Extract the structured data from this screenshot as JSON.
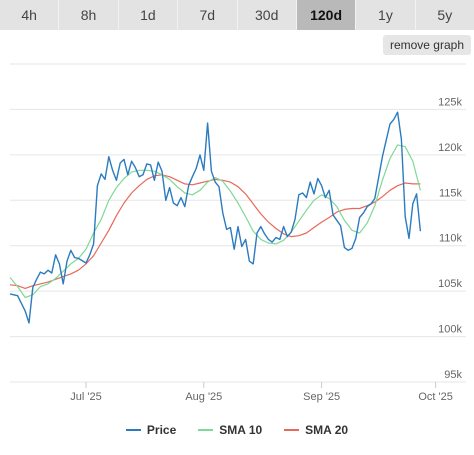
{
  "tabs": [
    {
      "label": "4h",
      "active": false
    },
    {
      "label": "8h",
      "active": false
    },
    {
      "label": "1d",
      "active": false
    },
    {
      "label": "7d",
      "active": false
    },
    {
      "label": "30d",
      "active": false
    },
    {
      "label": "120d",
      "active": true
    },
    {
      "label": "1y",
      "active": false
    },
    {
      "label": "5y",
      "active": false
    }
  ],
  "remove_graph_label": "remove graph",
  "colors": {
    "price": "#2b7bc0",
    "sma10": "#7fd996",
    "sma20": "#e8685a",
    "grid": "#e6e6e6",
    "axis_text": "#666666"
  },
  "chart_data": {
    "type": "line",
    "title": "",
    "xlabel": "",
    "ylabel": "",
    "ylim": [
      95000,
      125000
    ],
    "y_ticks": [
      95000,
      100000,
      105000,
      110000,
      115000,
      120000,
      125000
    ],
    "y_tick_labels": [
      "95k",
      "100k",
      "105k",
      "110k",
      "115k",
      "120k",
      "125k"
    ],
    "xlim": [
      0,
      120
    ],
    "x_ticks": [
      {
        "day": 20,
        "label": "Jul '25"
      },
      {
        "day": 51,
        "label": "Aug '25"
      },
      {
        "day": 82,
        "label": "Sep '25"
      },
      {
        "day": 112,
        "label": "Oct '25"
      }
    ],
    "grid": true,
    "legend_position": "bottom",
    "series": [
      {
        "name": "Price",
        "color_key": "price",
        "points": [
          [
            0,
            104700
          ],
          [
            2,
            104500
          ],
          [
            4,
            102800
          ],
          [
            5,
            101500
          ],
          [
            6,
            105400
          ],
          [
            7,
            106300
          ],
          [
            8,
            107100
          ],
          [
            9,
            106900
          ],
          [
            10,
            107300
          ],
          [
            11,
            107000
          ],
          [
            12,
            109000
          ],
          [
            13,
            108000
          ],
          [
            14,
            105800
          ],
          [
            15,
            108300
          ],
          [
            16,
            109500
          ],
          [
            17,
            108700
          ],
          [
            18,
            108600
          ],
          [
            20,
            108100
          ],
          [
            21,
            109000
          ],
          [
            22,
            110200
          ],
          [
            23,
            116600
          ],
          [
            24,
            117900
          ],
          [
            25,
            117300
          ],
          [
            26,
            119800
          ],
          [
            27,
            118300
          ],
          [
            28,
            117200
          ],
          [
            29,
            119100
          ],
          [
            30,
            119500
          ],
          [
            31,
            117800
          ],
          [
            32,
            119300
          ],
          [
            33,
            118600
          ],
          [
            34,
            117600
          ],
          [
            35,
            117800
          ],
          [
            36,
            119000
          ],
          [
            37,
            118900
          ],
          [
            38,
            117200
          ],
          [
            39,
            119200
          ],
          [
            40,
            118200
          ],
          [
            41,
            115000
          ],
          [
            42,
            116400
          ],
          [
            43,
            114700
          ],
          [
            44,
            114400
          ],
          [
            45,
            115300
          ],
          [
            46,
            114300
          ],
          [
            47,
            116600
          ],
          [
            48,
            117600
          ],
          [
            49,
            118500
          ],
          [
            50,
            120000
          ],
          [
            51,
            118300
          ],
          [
            52,
            123500
          ],
          [
            53,
            118200
          ],
          [
            54,
            117000
          ],
          [
            55,
            116500
          ],
          [
            56,
            113600
          ],
          [
            57,
            111800
          ],
          [
            58,
            112000
          ],
          [
            59,
            109600
          ],
          [
            60,
            112100
          ],
          [
            61,
            109900
          ],
          [
            62,
            110700
          ],
          [
            63,
            108300
          ],
          [
            64,
            108000
          ],
          [
            65,
            111400
          ],
          [
            66,
            112100
          ],
          [
            67,
            111300
          ],
          [
            68,
            110700
          ],
          [
            69,
            110400
          ],
          [
            70,
            110900
          ],
          [
            71,
            110700
          ],
          [
            72,
            112100
          ],
          [
            73,
            111000
          ],
          [
            74,
            111500
          ],
          [
            75,
            112900
          ],
          [
            76,
            115600
          ],
          [
            77,
            115800
          ],
          [
            78,
            115300
          ],
          [
            79,
            117000
          ],
          [
            80,
            115700
          ],
          [
            81,
            117400
          ],
          [
            82,
            116600
          ],
          [
            83,
            115300
          ],
          [
            84,
            116100
          ],
          [
            85,
            113400
          ],
          [
            86,
            112800
          ],
          [
            87,
            112200
          ],
          [
            88,
            109800
          ],
          [
            89,
            109500
          ],
          [
            90,
            109700
          ],
          [
            91,
            110800
          ],
          [
            92,
            113100
          ],
          [
            93,
            113600
          ],
          [
            94,
            114300
          ],
          [
            95,
            114600
          ],
          [
            96,
            115200
          ],
          [
            97,
            117500
          ],
          [
            98,
            119800
          ],
          [
            99,
            121600
          ],
          [
            100,
            123400
          ],
          [
            101,
            123900
          ],
          [
            102,
            124700
          ],
          [
            103,
            121700
          ],
          [
            104,
            113200
          ],
          [
            105,
            110800
          ],
          [
            106,
            114600
          ],
          [
            107,
            115700
          ],
          [
            108,
            111600
          ]
        ]
      },
      {
        "name": "SMA 10",
        "color_key": "sma10",
        "points": [
          [
            0,
            106500
          ],
          [
            2,
            105500
          ],
          [
            4,
            104300
          ],
          [
            6,
            104600
          ],
          [
            8,
            105500
          ],
          [
            10,
            105800
          ],
          [
            12,
            106400
          ],
          [
            14,
            107200
          ],
          [
            16,
            108000
          ],
          [
            18,
            108600
          ],
          [
            20,
            109600
          ],
          [
            22,
            111400
          ],
          [
            24,
            112900
          ],
          [
            26,
            115000
          ],
          [
            28,
            116400
          ],
          [
            30,
            117400
          ],
          [
            32,
            118100
          ],
          [
            34,
            118300
          ],
          [
            36,
            118300
          ],
          [
            38,
            118200
          ],
          [
            40,
            117800
          ],
          [
            42,
            117300
          ],
          [
            44,
            116500
          ],
          [
            46,
            115800
          ],
          [
            48,
            115600
          ],
          [
            50,
            116100
          ],
          [
            52,
            117000
          ],
          [
            54,
            117500
          ],
          [
            56,
            117100
          ],
          [
            58,
            116000
          ],
          [
            60,
            114700
          ],
          [
            62,
            113200
          ],
          [
            64,
            111600
          ],
          [
            66,
            110700
          ],
          [
            68,
            110300
          ],
          [
            70,
            110200
          ],
          [
            72,
            110600
          ],
          [
            74,
            111500
          ],
          [
            76,
            112700
          ],
          [
            78,
            113900
          ],
          [
            80,
            115000
          ],
          [
            82,
            115600
          ],
          [
            84,
            115200
          ],
          [
            86,
            114300
          ],
          [
            88,
            112800
          ],
          [
            90,
            111700
          ],
          [
            92,
            111400
          ],
          [
            94,
            112500
          ],
          [
            96,
            114400
          ],
          [
            98,
            117200
          ],
          [
            100,
            119600
          ],
          [
            102,
            121100
          ],
          [
            104,
            120900
          ],
          [
            106,
            119300
          ],
          [
            108,
            116100
          ]
        ]
      },
      {
        "name": "SMA 20",
        "color_key": "sma20",
        "points": [
          [
            0,
            105700
          ],
          [
            2,
            105600
          ],
          [
            4,
            105300
          ],
          [
            6,
            105600
          ],
          [
            8,
            105800
          ],
          [
            10,
            106000
          ],
          [
            12,
            106300
          ],
          [
            14,
            106600
          ],
          [
            16,
            106900
          ],
          [
            18,
            107300
          ],
          [
            20,
            108000
          ],
          [
            22,
            108900
          ],
          [
            24,
            110300
          ],
          [
            26,
            111700
          ],
          [
            28,
            113300
          ],
          [
            30,
            114700
          ],
          [
            32,
            115800
          ],
          [
            34,
            116600
          ],
          [
            36,
            117300
          ],
          [
            38,
            117700
          ],
          [
            40,
            117800
          ],
          [
            42,
            117600
          ],
          [
            44,
            117200
          ],
          [
            46,
            116800
          ],
          [
            48,
            116700
          ],
          [
            50,
            116900
          ],
          [
            52,
            117100
          ],
          [
            54,
            117300
          ],
          [
            56,
            117200
          ],
          [
            58,
            117000
          ],
          [
            60,
            116500
          ],
          [
            62,
            115700
          ],
          [
            64,
            114600
          ],
          [
            66,
            113500
          ],
          [
            68,
            112600
          ],
          [
            70,
            111900
          ],
          [
            72,
            111300
          ],
          [
            74,
            111000
          ],
          [
            76,
            111100
          ],
          [
            78,
            111400
          ],
          [
            80,
            112000
          ],
          [
            82,
            112600
          ],
          [
            84,
            113100
          ],
          [
            86,
            113700
          ],
          [
            88,
            114000
          ],
          [
            90,
            114100
          ],
          [
            92,
            114100
          ],
          [
            94,
            114400
          ],
          [
            96,
            114800
          ],
          [
            98,
            115400
          ],
          [
            100,
            116100
          ],
          [
            102,
            116600
          ],
          [
            104,
            116900
          ],
          [
            106,
            116800
          ],
          [
            108,
            116800
          ]
        ]
      }
    ]
  }
}
